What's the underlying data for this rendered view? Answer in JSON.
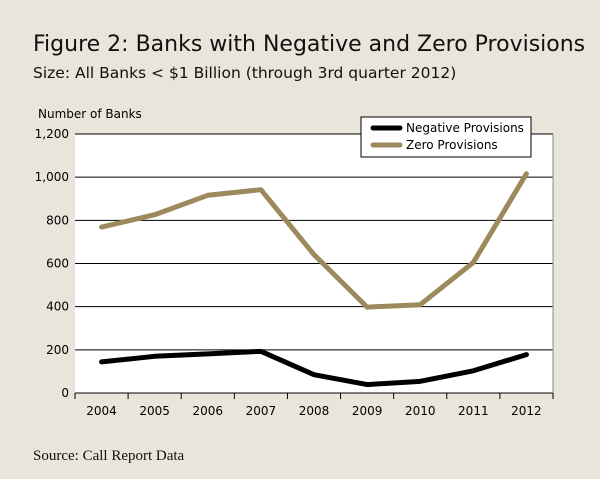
{
  "chart_data": {
    "type": "line",
    "title": "Figure 2: Banks with Negative and Zero Provisions",
    "subtitle": "Size: All Banks < $1 Billion (through 3rd quarter 2012)",
    "ylabel": "Number of Banks",
    "xlabel": "",
    "categories": [
      "2004",
      "2005",
      "2006",
      "2007",
      "2008",
      "2009",
      "2010",
      "2011",
      "2012"
    ],
    "ylim": [
      0,
      1200
    ],
    "yticks": [
      0,
      200,
      400,
      600,
      800,
      1000,
      1200
    ],
    "ytick_labels": [
      "0",
      "200",
      "400",
      "600",
      "800",
      "1,000",
      "1,200"
    ],
    "grid": "horizontal",
    "legend": "top-right",
    "series": [
      {
        "name": "Negative Provisions",
        "color": "#000000",
        "values": [
          144,
          170,
          181,
          193,
          85,
          39,
          54,
          103,
          178
        ]
      },
      {
        "name": "Zero Provisions",
        "color": "#9c8a5c",
        "values": [
          769,
          826,
          916,
          942,
          641,
          398,
          409,
          605,
          1016
        ]
      }
    ],
    "source": "Source: Call Report Data"
  }
}
